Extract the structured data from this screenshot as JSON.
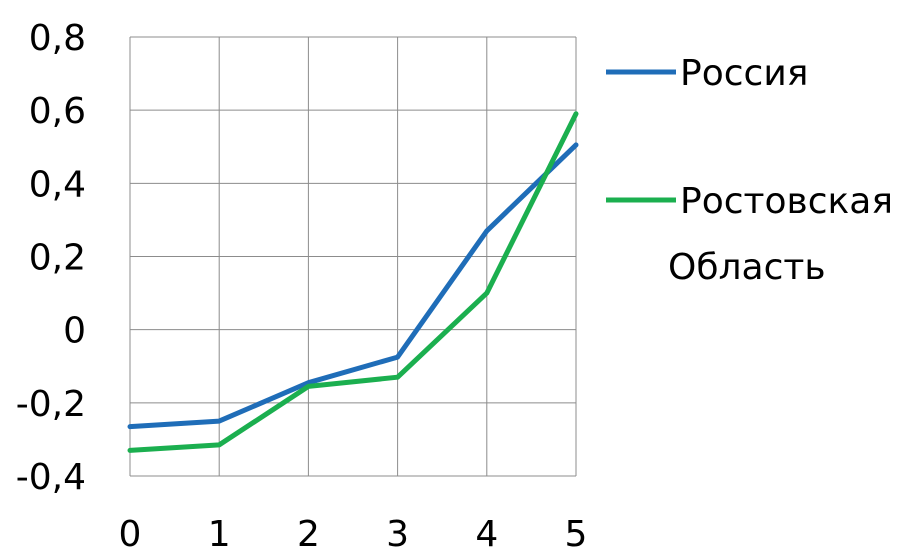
{
  "chart_data": {
    "type": "line",
    "x": [
      0,
      1,
      2,
      3,
      4,
      5
    ],
    "series": [
      {
        "name": "Россия",
        "color": "#1F6DB8",
        "values": [
          -0.265,
          -0.25,
          -0.145,
          -0.075,
          0.27,
          0.505
        ]
      },
      {
        "name": "Ростовская Область",
        "color": "#1BAF4F",
        "values": [
          -0.33,
          -0.315,
          -0.155,
          -0.13,
          0.1,
          0.59
        ]
      }
    ],
    "x_ticks": [
      "0",
      "1",
      "2",
      "3",
      "4",
      "5"
    ],
    "y_ticks": [
      "-0,4",
      "-0,2",
      "0",
      "0,2",
      "0,4",
      "0,6",
      "0,8"
    ],
    "y_tick_values": [
      -0.4,
      -0.2,
      0,
      0.2,
      0.4,
      0.6,
      0.8
    ],
    "xlim": [
      0,
      5
    ],
    "ylim": [
      -0.4,
      0.8
    ],
    "grid": true,
    "legend": {
      "position": "right",
      "entries": [
        {
          "lines": [
            "Россия"
          ]
        },
        {
          "lines": [
            "Ростовская",
            "Область"
          ]
        }
      ]
    }
  }
}
